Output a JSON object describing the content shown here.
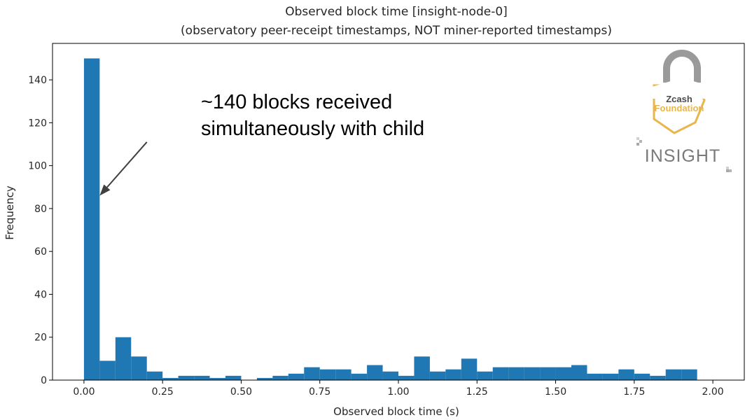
{
  "chart_data": {
    "type": "bar",
    "title": "Observed block time [insight-node-0]",
    "subtitle": "(observatory peer-receipt timestamps, NOT miner-reported timestamps)",
    "xlabel": "Observed block time (s)",
    "ylabel": "Frequency",
    "xlim": [
      -0.1,
      2.1
    ],
    "ylim": [
      0,
      157
    ],
    "bin_edges": [
      0.0,
      0.05,
      0.1,
      0.15,
      0.2,
      0.25,
      0.3,
      0.35,
      0.4,
      0.45,
      0.5,
      0.55,
      0.6,
      0.65,
      0.7,
      0.75,
      0.8,
      0.85,
      0.9,
      0.95,
      1.0,
      1.05,
      1.1,
      1.15,
      1.2,
      1.25,
      1.3,
      1.35,
      1.4,
      1.45,
      1.5,
      1.55,
      1.6,
      1.65,
      1.7,
      1.75,
      1.8,
      1.85,
      1.9,
      1.95,
      2.0
    ],
    "values": [
      150,
      9,
      20,
      11,
      4,
      1,
      2,
      2,
      1,
      2,
      0,
      1,
      2,
      3,
      6,
      5,
      5,
      3,
      7,
      4,
      2,
      11,
      4,
      5,
      10,
      4,
      6,
      6,
      6,
      6,
      6,
      7,
      3,
      3,
      5,
      3,
      2,
      5,
      5,
      0
    ],
    "xticks": [
      0.0,
      0.25,
      0.5,
      0.75,
      1.0,
      1.25,
      1.5,
      1.75,
      2.0
    ],
    "xtick_labels": [
      "0.00",
      "0.25",
      "0.50",
      "0.75",
      "1.00",
      "1.25",
      "1.50",
      "1.75",
      "2.00"
    ],
    "yticks": [
      0,
      20,
      40,
      60,
      80,
      100,
      120,
      140
    ],
    "ytick_labels": [
      "0",
      "20",
      "40",
      "60",
      "80",
      "100",
      "120",
      "140"
    ],
    "bar_color": "#1f77b4",
    "annotation": {
      "lines": [
        "~140 blocks received",
        "simultaneously with child"
      ],
      "arrow_tip": {
        "x": 0.05,
        "y": 86
      },
      "arrow_tail": {
        "x": 0.2,
        "y": 111
      }
    }
  },
  "logo": {
    "line1": "Zcash",
    "line2": "Foundation",
    "wordmark": "INSIGHT",
    "accent_color": "#e8b64d"
  }
}
